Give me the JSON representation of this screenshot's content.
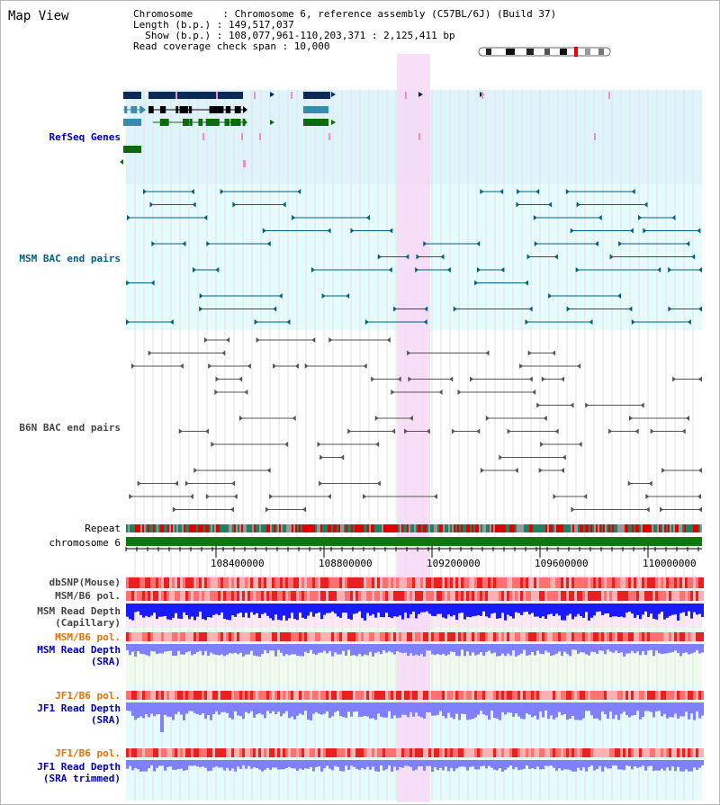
{
  "title": "Map View",
  "info": {
    "chromosome": "Chromosome     : Chromosome 6, reference assembly (C57BL/6J) (Build 37)",
    "length": "Length (b.p.) : 149,517,037",
    "show": "  Show (b.p.) : 108,077,961-110,203,371 : 2,125,411 bp",
    "span": "Read coverage check span : 10,000"
  },
  "tracks": {
    "refseq": "RefSeq Genes",
    "msm_bac": "MSM BAC end pairs",
    "b6n_bac": "B6N BAC end pairs",
    "repeat": "Repeat",
    "chromosome": "chromosome 6",
    "dbsnp": "dbSNP(Mouse)",
    "msm_b6_pol_1": "MSM/B6 pol.",
    "msm_depth_cap_1": "MSM Read Depth",
    "msm_depth_cap_2": "(Capillary)",
    "msm_b6_pol_2": "MSM/B6 pol.",
    "msm_depth_sra_1": "MSM Read Depth",
    "msm_depth_sra_2": "(SRA)",
    "jf1_b6_pol_1": "JF1/B6 pol.",
    "jf1_depth_sra_1": "JF1 Read Depth",
    "jf1_depth_sra_2": "(SRA)",
    "jf1_b6_pol_2": "JF1/B6 pol.",
    "jf1_depth_trim_1": "JF1 Read Depth",
    "jf1_depth_trim_2": "(SRA trimmed)"
  },
  "axis_ticks": [
    "108400000",
    "108800000",
    "109200000",
    "109600000",
    "110000000"
  ],
  "colors": {
    "refseq_bg": "#dff3fb",
    "bac_bg": "#e6fbfb",
    "highlight": "#f7d8f5",
    "chromosome": "#0b7a0b",
    "msm_label": "#006080",
    "ref_label": "#0000aa",
    "orange_label": "#e07000",
    "depth_dark": "#1a1aff",
    "depth_light": "#8080ff"
  }
}
